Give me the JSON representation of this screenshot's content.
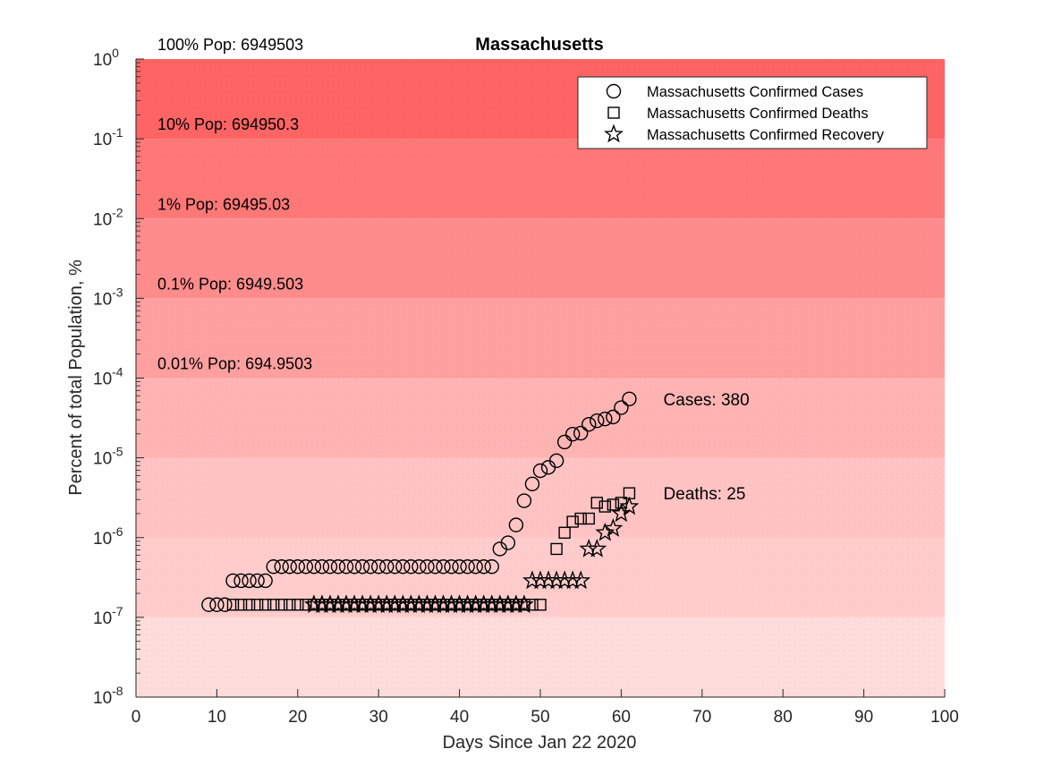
{
  "chart_data": {
    "type": "scatter",
    "title": "Massachusetts",
    "xlabel": "Days Since Jan 22 2020",
    "ylabel": "Percent of total Population, %",
    "xlim": [
      0,
      100
    ],
    "ylim": [
      1e-08,
      1
    ],
    "yscale": "log",
    "grid": false,
    "xticks": [
      0,
      10,
      20,
      30,
      40,
      50,
      60,
      70,
      80,
      90,
      100
    ],
    "yticks": [
      {
        "base": "10",
        "exp": "-8",
        "value": 1e-08
      },
      {
        "base": "10",
        "exp": "-7",
        "value": 1e-07
      },
      {
        "base": "10",
        "exp": "-6",
        "value": 1e-06
      },
      {
        "base": "10",
        "exp": "-5",
        "value": 1e-05
      },
      {
        "base": "10",
        "exp": "-4",
        "value": 0.0001
      },
      {
        "base": "10",
        "exp": "-3",
        "value": 0.001
      },
      {
        "base": "10",
        "exp": "-2",
        "value": 0.01
      },
      {
        "base": "10",
        "exp": "-1",
        "value": 0.1
      },
      {
        "base": "10",
        "exp": "0",
        "value": 1
      }
    ],
    "population_bands": [
      {
        "label": "100% Pop: 6949503",
        "from": 0.1,
        "to": 1,
        "color": "#ff6464"
      },
      {
        "label": "10% Pop: 694950.3",
        "from": 0.01,
        "to": 0.1,
        "color": "#ff7878"
      },
      {
        "label": "1% Pop: 69495.03",
        "from": 0.001,
        "to": 0.01,
        "color": "#ff8c8c"
      },
      {
        "label": "0.1% Pop: 6949.503",
        "from": 0.0001,
        "to": 0.001,
        "color": "#ffa0a0"
      },
      {
        "label": "0.01% Pop: 694.9503",
        "from": 1e-05,
        "to": 0.0001,
        "color": "#ffb4b4"
      },
      {
        "label": "",
        "from": 1e-06,
        "to": 1e-05,
        "color": "#ffc3c3"
      },
      {
        "label": "",
        "from": 1e-07,
        "to": 1e-06,
        "color": "#ffcccc"
      },
      {
        "label": "",
        "from": 1e-08,
        "to": 1e-07,
        "color": "#ffdcdc"
      }
    ],
    "legend": {
      "placement": "top-right"
    },
    "series": [
      {
        "name": "Massachusetts Confirmed Cases",
        "marker": "circle",
        "x": [
          9,
          10,
          11,
          12,
          13,
          14,
          15,
          16,
          17,
          18,
          19,
          20,
          21,
          22,
          23,
          24,
          25,
          26,
          27,
          28,
          29,
          30,
          31,
          32,
          33,
          34,
          35,
          36,
          37,
          38,
          39,
          40,
          41,
          42,
          43,
          44,
          45,
          46,
          47,
          48,
          49,
          50,
          51,
          52,
          53,
          54,
          55,
          56,
          57,
          58,
          59,
          60,
          61
        ],
        "y": [
          1.44e-07,
          1.44e-07,
          1.44e-07,
          2.88e-07,
          2.88e-07,
          2.88e-07,
          2.88e-07,
          2.88e-07,
          4.32e-07,
          4.32e-07,
          4.32e-07,
          4.32e-07,
          4.32e-07,
          4.32e-07,
          4.32e-07,
          4.32e-07,
          4.32e-07,
          4.32e-07,
          4.32e-07,
          4.32e-07,
          4.32e-07,
          4.32e-07,
          4.32e-07,
          4.32e-07,
          4.32e-07,
          4.32e-07,
          4.32e-07,
          4.32e-07,
          4.32e-07,
          4.32e-07,
          4.32e-07,
          4.32e-07,
          4.32e-07,
          4.32e-07,
          4.32e-07,
          4.32e-07,
          7.2e-07,
          8.6e-07,
          1.44e-06,
          2.9e-06,
          4.7e-06,
          6.9e-06,
          7.6e-06,
          9.2e-06,
          1.58e-05,
          1.98e-05,
          2.04e-05,
          2.63e-05,
          2.92e-05,
          3.07e-05,
          3.25e-05,
          4.26e-05,
          5.47e-05
        ]
      },
      {
        "name": "Massachusetts Confirmed Deaths",
        "marker": "square",
        "x": [
          12,
          13,
          14,
          15,
          16,
          17,
          18,
          19,
          20,
          21,
          22,
          23,
          24,
          25,
          26,
          27,
          28,
          29,
          30,
          31,
          32,
          33,
          34,
          35,
          36,
          37,
          38,
          39,
          40,
          41,
          42,
          43,
          44,
          45,
          46,
          47,
          48,
          49,
          50,
          52,
          53,
          54,
          55,
          56,
          57,
          58,
          59,
          60,
          61
        ],
        "y": [
          1.44e-07,
          1.44e-07,
          1.44e-07,
          1.44e-07,
          1.44e-07,
          1.44e-07,
          1.44e-07,
          1.44e-07,
          1.44e-07,
          1.44e-07,
          1.44e-07,
          1.44e-07,
          1.44e-07,
          1.44e-07,
          1.44e-07,
          1.44e-07,
          1.44e-07,
          1.44e-07,
          1.44e-07,
          1.44e-07,
          1.44e-07,
          1.44e-07,
          1.44e-07,
          1.44e-07,
          1.44e-07,
          1.44e-07,
          1.44e-07,
          1.44e-07,
          1.44e-07,
          1.44e-07,
          1.44e-07,
          1.44e-07,
          1.44e-07,
          1.44e-07,
          1.44e-07,
          1.44e-07,
          1.44e-07,
          1.44e-07,
          1.44e-07,
          7.2e-07,
          1.15e-06,
          1.58e-06,
          1.73e-06,
          1.73e-06,
          2.73e-06,
          2.45e-06,
          2.59e-06,
          2.73e-06,
          3.6e-06
        ]
      },
      {
        "name": "Massachusetts Confirmed Recovery",
        "marker": "star",
        "x": [
          22,
          23,
          24,
          25,
          26,
          27,
          28,
          29,
          30,
          31,
          32,
          33,
          34,
          35,
          36,
          37,
          38,
          39,
          40,
          41,
          42,
          43,
          44,
          45,
          46,
          47,
          48,
          49,
          50,
          51,
          52,
          53,
          54,
          55,
          56,
          57,
          58,
          59,
          60,
          61
        ],
        "y": [
          1.44e-07,
          1.44e-07,
          1.44e-07,
          1.44e-07,
          1.44e-07,
          1.44e-07,
          1.44e-07,
          1.44e-07,
          1.44e-07,
          1.44e-07,
          1.44e-07,
          1.44e-07,
          1.44e-07,
          1.44e-07,
          1.44e-07,
          1.44e-07,
          1.44e-07,
          1.44e-07,
          1.44e-07,
          1.44e-07,
          1.44e-07,
          1.44e-07,
          1.44e-07,
          1.44e-07,
          1.44e-07,
          1.44e-07,
          1.44e-07,
          2.88e-07,
          2.88e-07,
          2.88e-07,
          2.88e-07,
          2.88e-07,
          2.88e-07,
          2.88e-07,
          7.2e-07,
          7.2e-07,
          1.15e-06,
          1.3e-06,
          2e-06,
          2.45e-06
        ]
      }
    ],
    "annotations": [
      {
        "text": "Cases: 380",
        "x": 64,
        "y": 5.47e-05
      },
      {
        "text": "Deaths: 25",
        "x": 64,
        "y": 3.6e-06
      }
    ]
  }
}
